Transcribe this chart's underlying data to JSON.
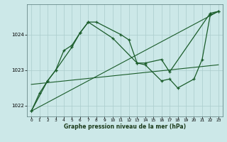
{
  "xlabel": "Graphe pression niveau de la mer (hPa)",
  "bg_color": "#cce8e8",
  "grid_color": "#aacccc",
  "line_color": "#1a5c2a",
  "ylim": [
    1021.7,
    1024.85
  ],
  "xlim": [
    -0.5,
    23.5
  ],
  "yticks": [
    1022,
    1023,
    1024
  ],
  "xticks": [
    0,
    1,
    2,
    3,
    4,
    5,
    6,
    7,
    8,
    9,
    10,
    11,
    12,
    13,
    14,
    15,
    16,
    17,
    18,
    19,
    20,
    21,
    22,
    23
  ],
  "trend1": {
    "x": [
      0,
      23
    ],
    "y": [
      1021.85,
      1024.65
    ]
  },
  "trend2": {
    "x": [
      0,
      23
    ],
    "y": [
      1022.6,
      1023.15
    ]
  },
  "line1_x": [
    0,
    1,
    2,
    3,
    4,
    5,
    6,
    7,
    8,
    11,
    12,
    13,
    14,
    16,
    17,
    22,
    23
  ],
  "line1_y": [
    1021.85,
    1022.35,
    1022.7,
    1023.0,
    1023.55,
    1023.7,
    1024.05,
    1024.35,
    1024.35,
    1024.0,
    1023.85,
    1023.2,
    1023.2,
    1023.3,
    1022.95,
    1024.6,
    1024.65
  ],
  "line2_x": [
    0,
    2,
    3,
    5,
    6,
    7,
    10,
    13,
    14,
    16,
    17,
    18,
    20,
    21,
    22,
    23
  ],
  "line2_y": [
    1021.85,
    1022.7,
    1023.0,
    1023.65,
    1024.05,
    1024.35,
    1023.9,
    1023.2,
    1023.15,
    1022.7,
    1022.75,
    1022.5,
    1022.75,
    1023.3,
    1024.55,
    1024.65
  ]
}
